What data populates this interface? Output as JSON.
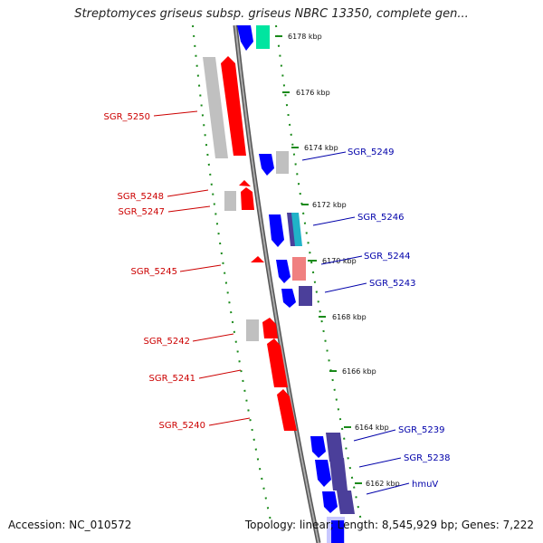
{
  "title": "Streptomyces griseus subsp. griseus NBRC 13350, complete gen...",
  "footer": {
    "accession": "Accession: NC_010572",
    "stats": "Topology: linear; Length: 8,545,929 bp; Genes: 7,222"
  },
  "colors": {
    "left_track_gene": "#ff0000",
    "left_track_shadow": "#c0c0c0",
    "right_track_gene": "#0000ff",
    "right_track_cyan": "#00e5a0",
    "right_track_purple": "#4b3f9a",
    "right_track_salmon": "#f08080",
    "right_track_teal": "#20b2c8",
    "left_label": "#cc0000",
    "right_label": "#0000aa",
    "scale_tick": "#1a8a1a",
    "axis": "#888888"
  },
  "scale_marks": [
    "6178 kbp",
    "6176 kbp",
    "6174 kbp",
    "6172 kbp",
    "6170 kbp",
    "6168 kbp",
    "6166 kbp",
    "6164 kbp",
    "6162 kbp"
  ],
  "left_genes": [
    "SGR_5250",
    "SGR_5248",
    "SGR_5247",
    "SGR_5245",
    "SGR_5242",
    "SGR_5241",
    "SGR_5240"
  ],
  "right_genes": [
    "SGR_5249",
    "SGR_5246",
    "SGR_5244",
    "SGR_5243",
    "SGR_5239",
    "SGR_5238",
    "hmuV"
  ]
}
